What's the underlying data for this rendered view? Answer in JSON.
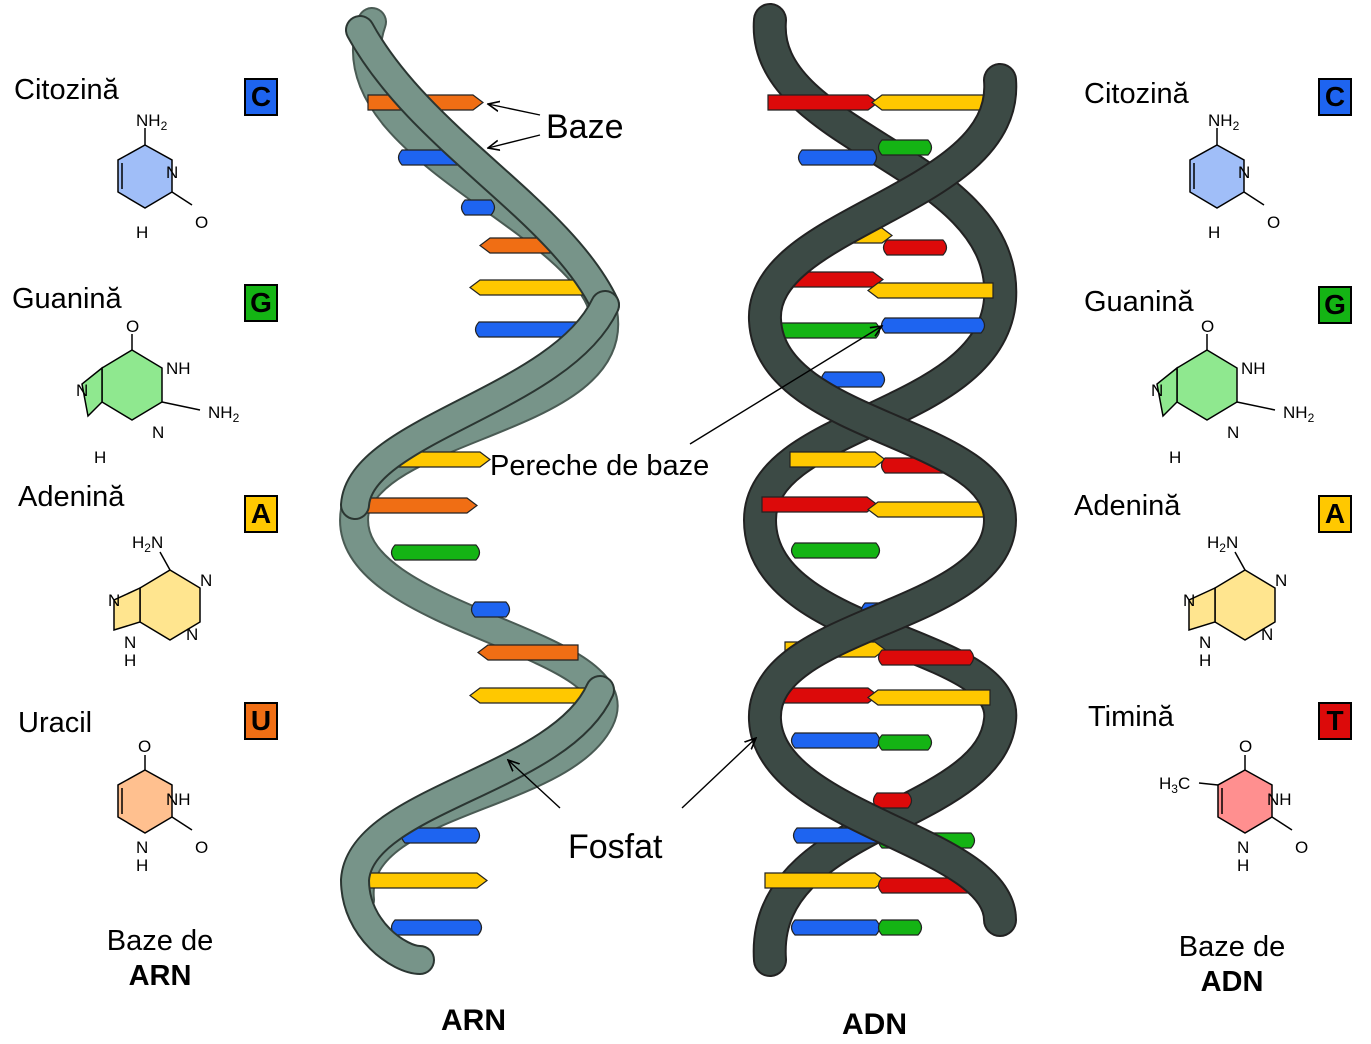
{
  "colors": {
    "cytosine": "#1e64f0",
    "guanine": "#14b414",
    "adenine": "#ffc800",
    "uracil": "#f06e14",
    "thymine": "#dc0a0a",
    "rna_backbone": "#779489",
    "dna_backbone": "#3c4a45"
  },
  "labels": {
    "bases": "Baze",
    "base_pair": "Pereche de baze",
    "phosphate": "Fosfat",
    "rna": "ARN",
    "dna": "ADN"
  },
  "rna_panel": {
    "caption_line1": "Baze de",
    "caption_line2": "ARN",
    "bases": [
      {
        "name": "Citozină",
        "letter": "C",
        "color": "cytosine"
      },
      {
        "name": "Guanină",
        "letter": "G",
        "color": "guanine"
      },
      {
        "name": "Adenină",
        "letter": "A",
        "color": "adenine"
      },
      {
        "name": "Uracil",
        "letter": "U",
        "color": "uracil"
      }
    ]
  },
  "dna_panel": {
    "caption_line1": "Baze de",
    "caption_line2": "ADN",
    "bases": [
      {
        "name": "Citozină",
        "letter": "C",
        "color": "cytosine"
      },
      {
        "name": "Guanină",
        "letter": "G",
        "color": "guanine"
      },
      {
        "name": "Adenină",
        "letter": "A",
        "color": "adenine"
      },
      {
        "name": "Timină",
        "letter": "T",
        "color": "thymine"
      }
    ]
  },
  "molecule_text": {
    "nh2": "NH2",
    "h2n": "H2N",
    "n": "N",
    "nh": "NH",
    "h": "H",
    "o": "O",
    "h3c": "H3C"
  }
}
